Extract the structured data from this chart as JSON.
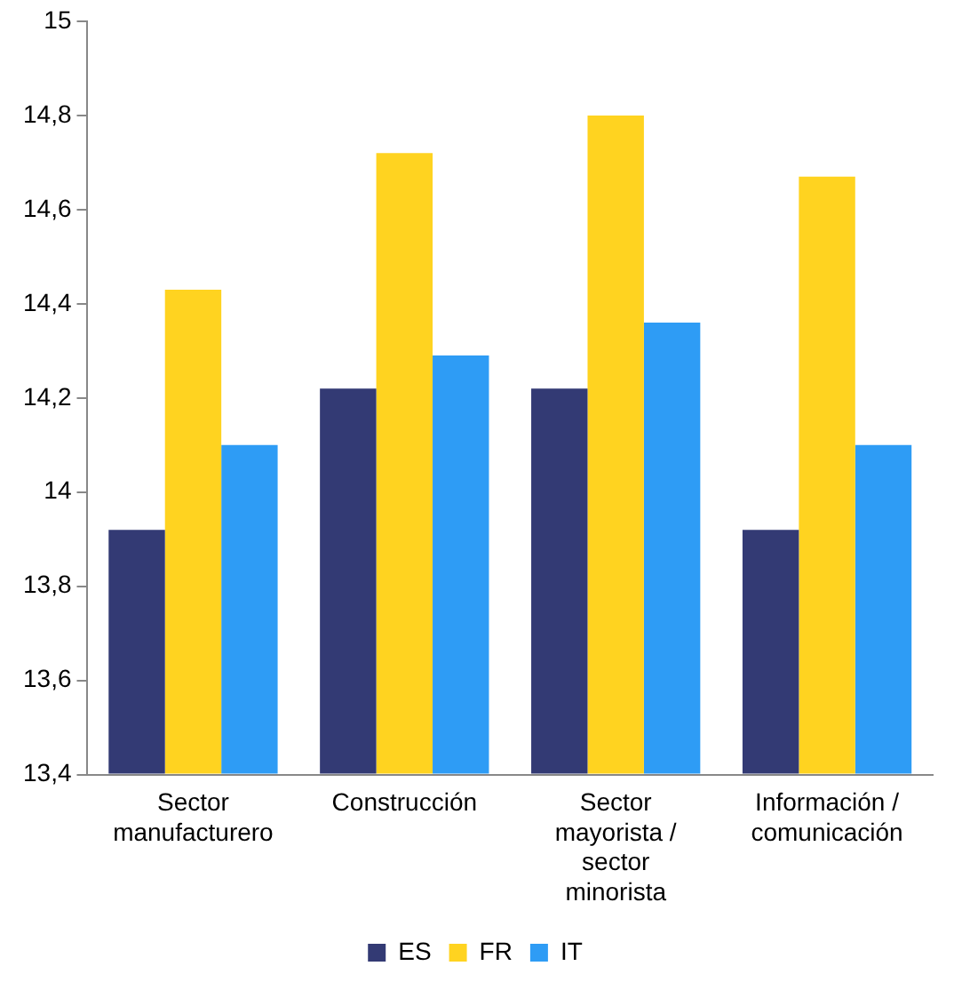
{
  "chart_data": {
    "type": "bar",
    "categories": [
      "Sector manufacturero",
      "Construcción",
      "Sector mayorista / sector minorista",
      "Información / comunicación"
    ],
    "series": [
      {
        "name": "ES",
        "color": "#333a74",
        "values": [
          13.92,
          14.22,
          14.22,
          13.92
        ]
      },
      {
        "name": "FR",
        "color": "#ffd320",
        "values": [
          14.43,
          14.72,
          14.8,
          14.67
        ]
      },
      {
        "name": "IT",
        "color": "#2e9cf5",
        "values": [
          14.1,
          14.29,
          14.36,
          14.1
        ]
      }
    ],
    "ylim": [
      13.4,
      15
    ],
    "yticks": [
      {
        "value": 13.4,
        "label": "13,4"
      },
      {
        "value": 13.6,
        "label": "13,6"
      },
      {
        "value": 13.8,
        "label": "13,8"
      },
      {
        "value": 14,
        "label": "14"
      },
      {
        "value": 14.2,
        "label": "14,2"
      },
      {
        "value": 14.4,
        "label": "14,4"
      },
      {
        "value": 14.6,
        "label": "14,6"
      },
      {
        "value": 14.8,
        "label": "14,8"
      },
      {
        "value": 15,
        "label": "15"
      }
    ],
    "grid": false,
    "legend": "bottom"
  }
}
